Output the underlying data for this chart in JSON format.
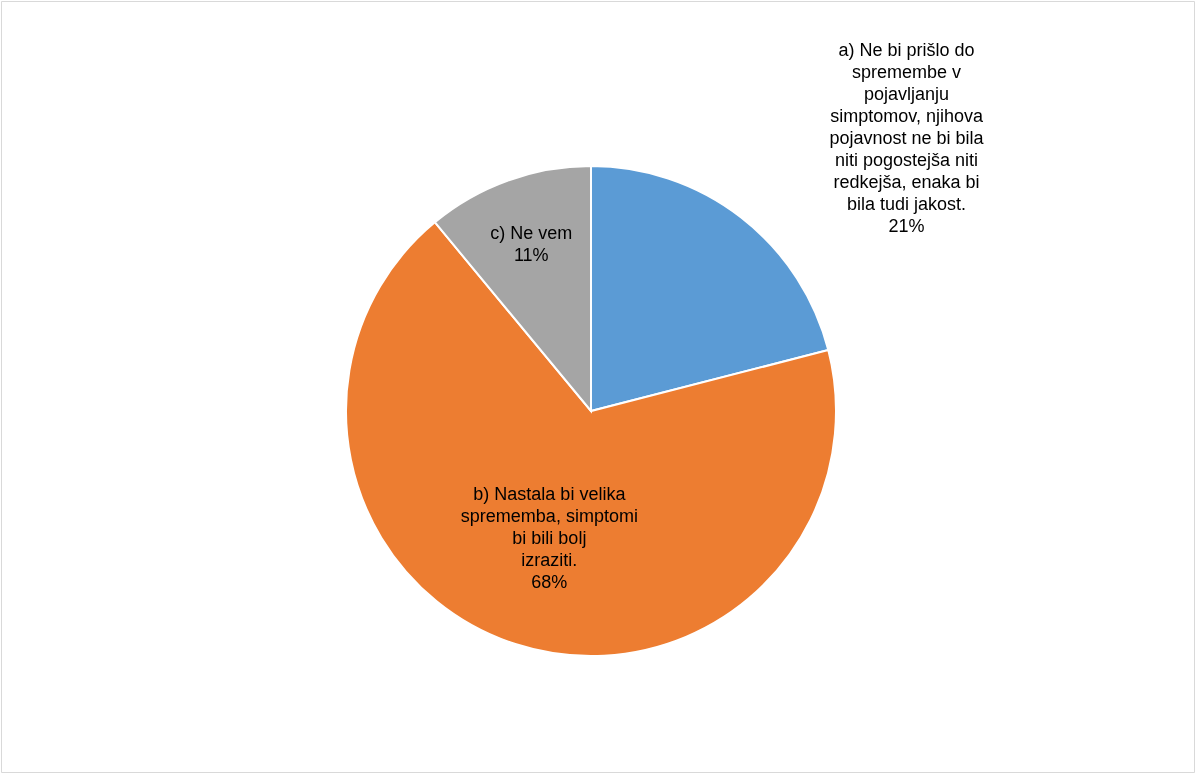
{
  "chart_data": {
    "type": "pie",
    "categories": [
      "a) Ne bi prišlo do spremembe v pojavljanju simptomov, njihova pojavnost ne bi bila niti pogostejša niti redkejša, enaka bi bila tudi jakost.",
      "b)  Nastala bi velika sprememba, simptomi bi bili bolj izraziti.",
      "c) Ne vem"
    ],
    "values": [
      21,
      68,
      11
    ],
    "colors": [
      "#5b9bd5",
      "#ed7d31",
      "#a5a5a5"
    ],
    "value_labels": [
      "21%",
      "68%",
      "11%"
    ]
  }
}
